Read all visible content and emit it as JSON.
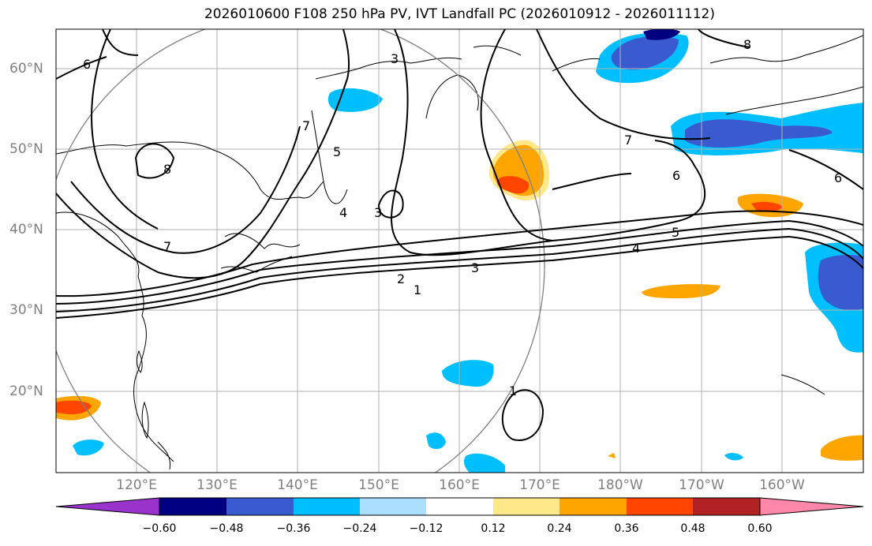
{
  "title": "2026010600 F108 250 hPa PV, IVT Landfall PC (2026010912 - 2026011112)",
  "lat_labels": [
    "60°N",
    "50°N",
    "40°N",
    "30°N",
    "20°N"
  ],
  "lon_labels": [
    "120°E",
    "130°E",
    "140°E",
    "150°E",
    "160°E",
    "170°E",
    "180°W",
    "170°W",
    "160°W"
  ],
  "contour_labels": [
    "6",
    "3",
    "8",
    "5",
    "4",
    "3",
    "7",
    "7",
    "5",
    "4",
    "3",
    "2",
    "1",
    "7",
    "6",
    "6",
    "8",
    "1"
  ],
  "colorbar": {
    "tick_labels": [
      "−0.60",
      "−0.48",
      "−0.36",
      "−0.24",
      "−0.12",
      "0.12",
      "0.24",
      "0.36",
      "0.48",
      "0.60"
    ],
    "colors": [
      "#9933cc",
      "#000080",
      "#3a5bcf",
      "#00bfff",
      "#aadfff",
      "#ffffff",
      "#ffe88a",
      "#ffa500",
      "#ff4500",
      "#b22222",
      "#ff88aa"
    ]
  }
}
